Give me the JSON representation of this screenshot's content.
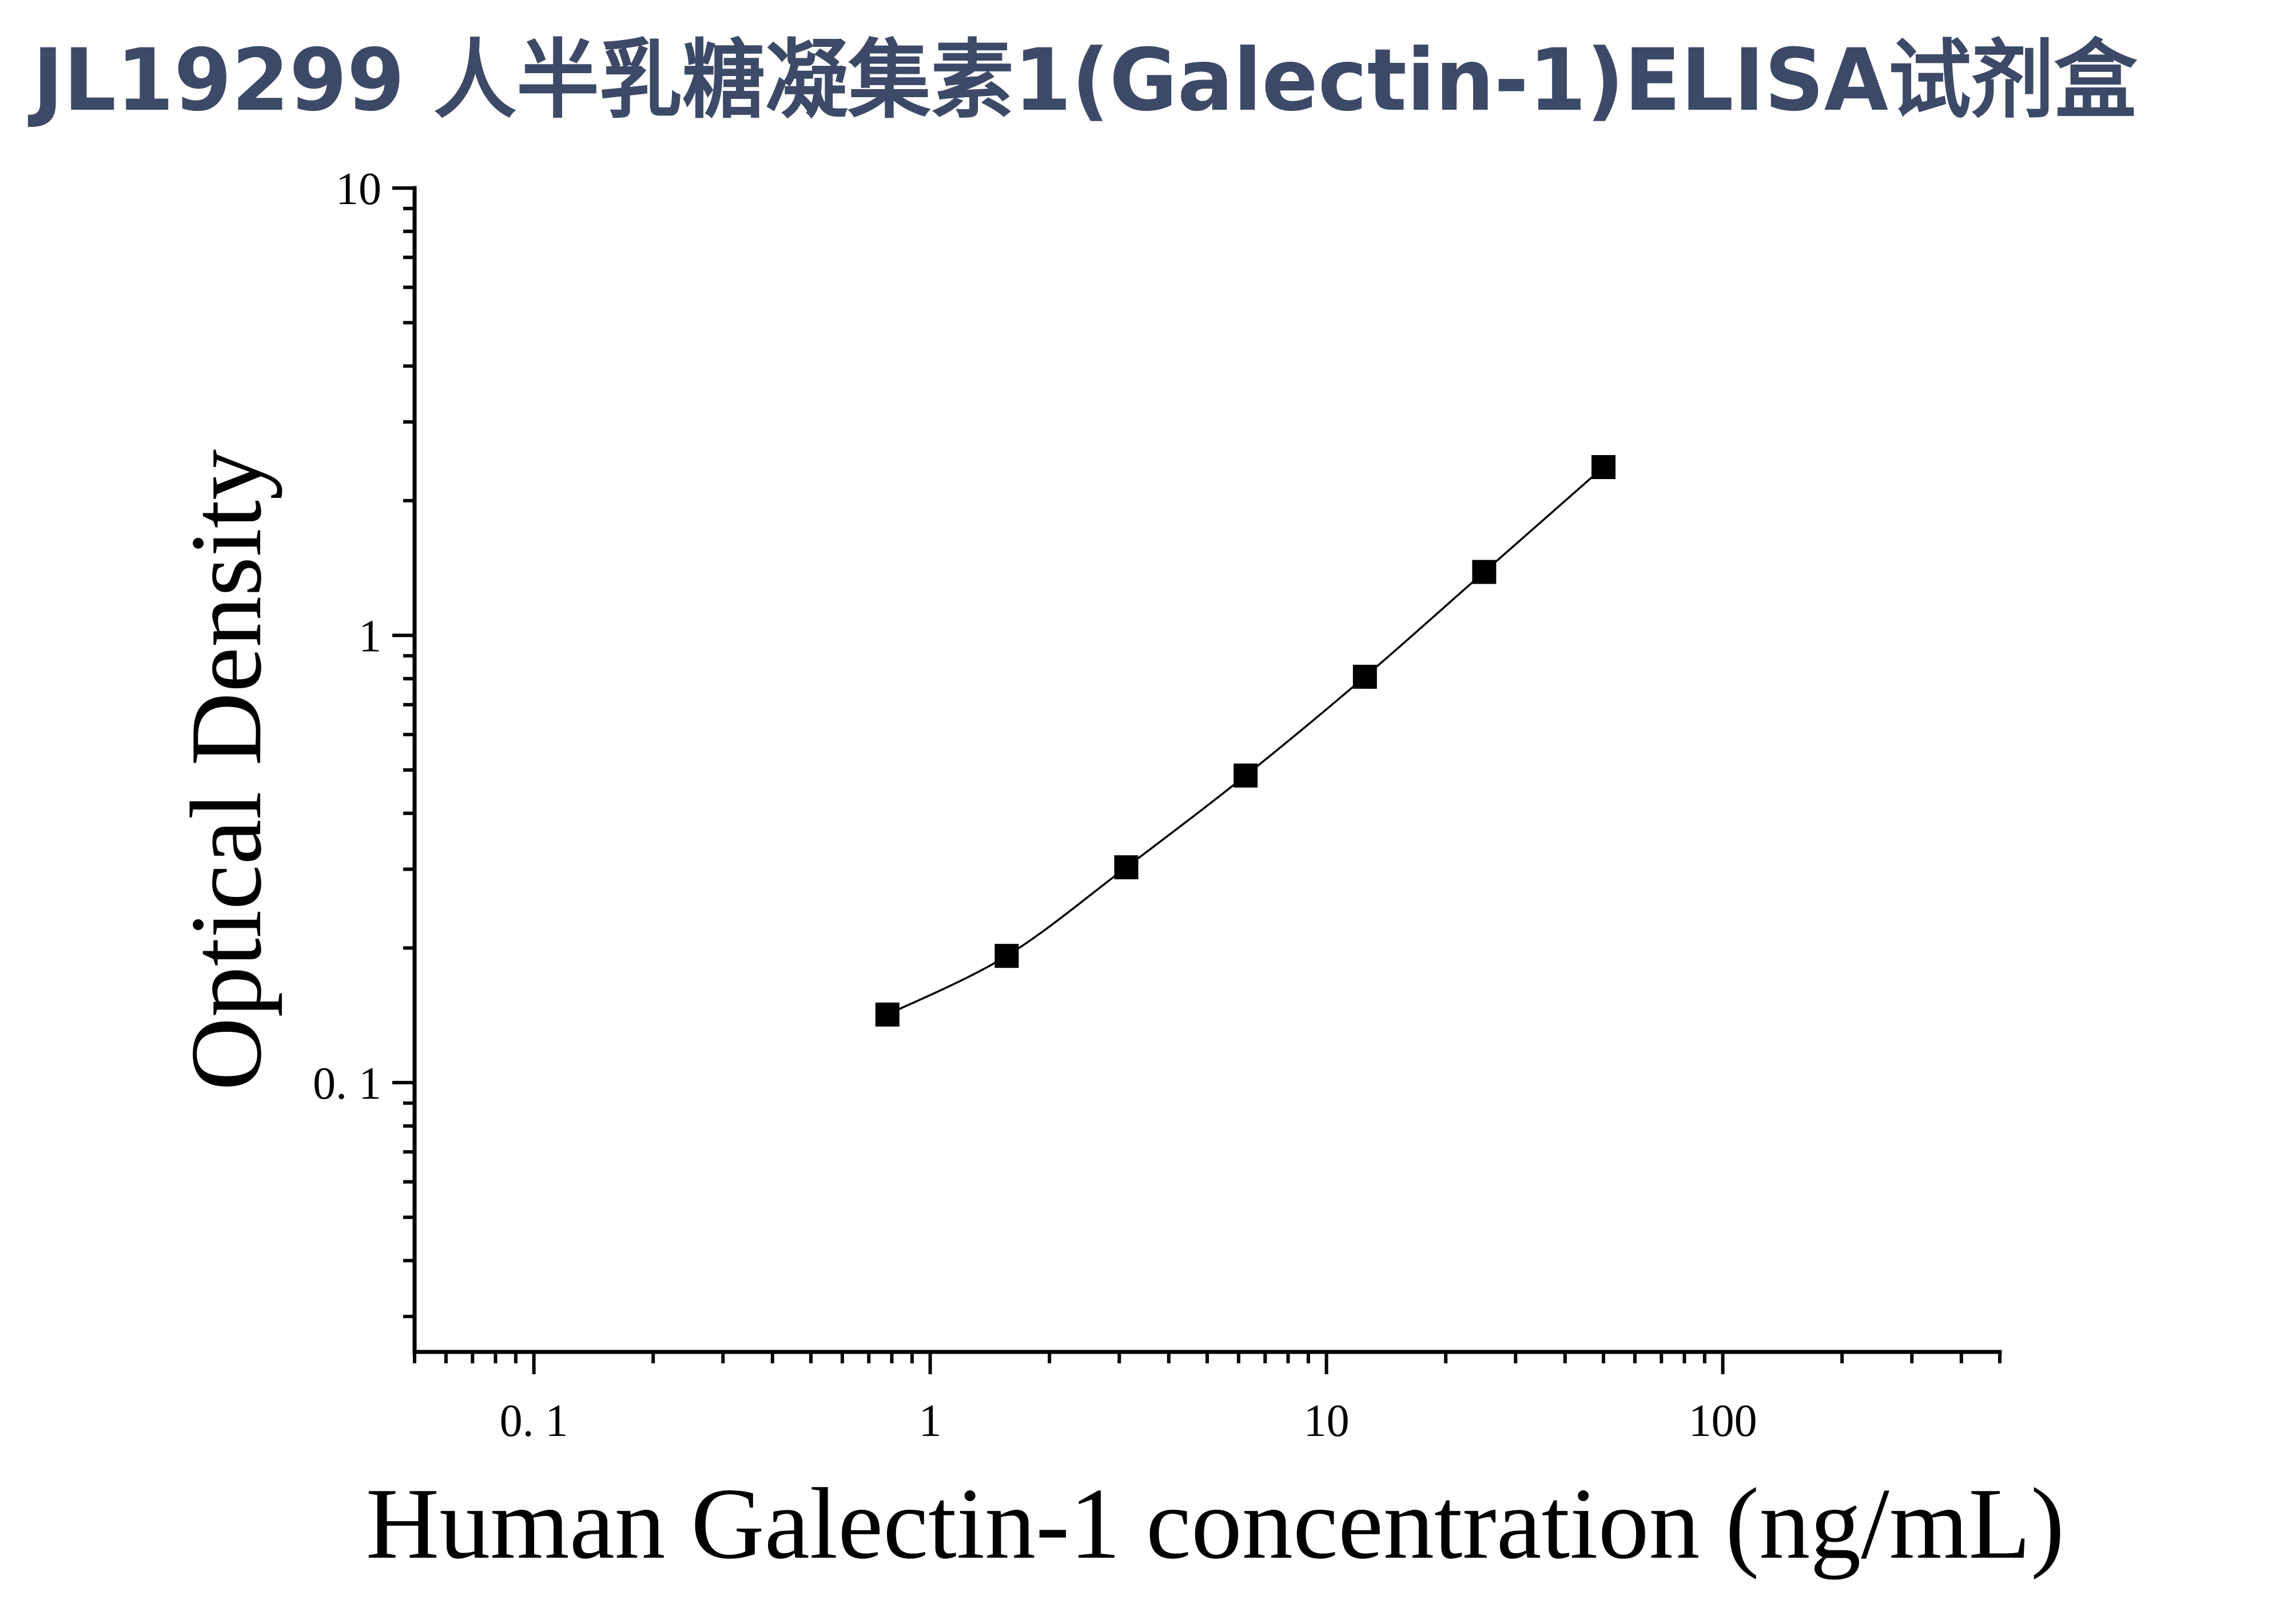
{
  "chart_data": {
    "type": "scatter",
    "title": "JL19299 人半乳糖凝集素1(Galectin-1)ELISA试剂盒",
    "xlabel": "Human Galectin-1 concentration (ng/mL)",
    "ylabel": "Optical Density",
    "xscale": "log",
    "yscale": "log",
    "xlim": [
      0.05,
      500
    ],
    "ylim": [
      0.025,
      10
    ],
    "xticks": [
      {
        "value": 0.1,
        "label": "0. 1"
      },
      {
        "value": 1,
        "label": "1"
      },
      {
        "value": 10,
        "label": "10"
      },
      {
        "value": 100,
        "label": "100"
      }
    ],
    "yticks": [
      {
        "value": 0.1,
        "label": "0. 1"
      },
      {
        "value": 1,
        "label": "1"
      },
      {
        "value": 10,
        "label": "10"
      }
    ],
    "minor_ticks": true,
    "grid": false,
    "legend": "none",
    "series": [
      {
        "x": [
          0.78,
          1.56,
          3.125,
          6.25,
          12.5,
          25,
          50
        ],
        "y": [
          0.142,
          0.192,
          0.303,
          0.486,
          0.808,
          1.386,
          2.378
        ],
        "marker": "square",
        "line": "smooth",
        "color": "#000000"
      }
    ]
  },
  "colors": {
    "title": "#3c4a67",
    "axis": "#000000",
    "background": "#ffffff"
  }
}
